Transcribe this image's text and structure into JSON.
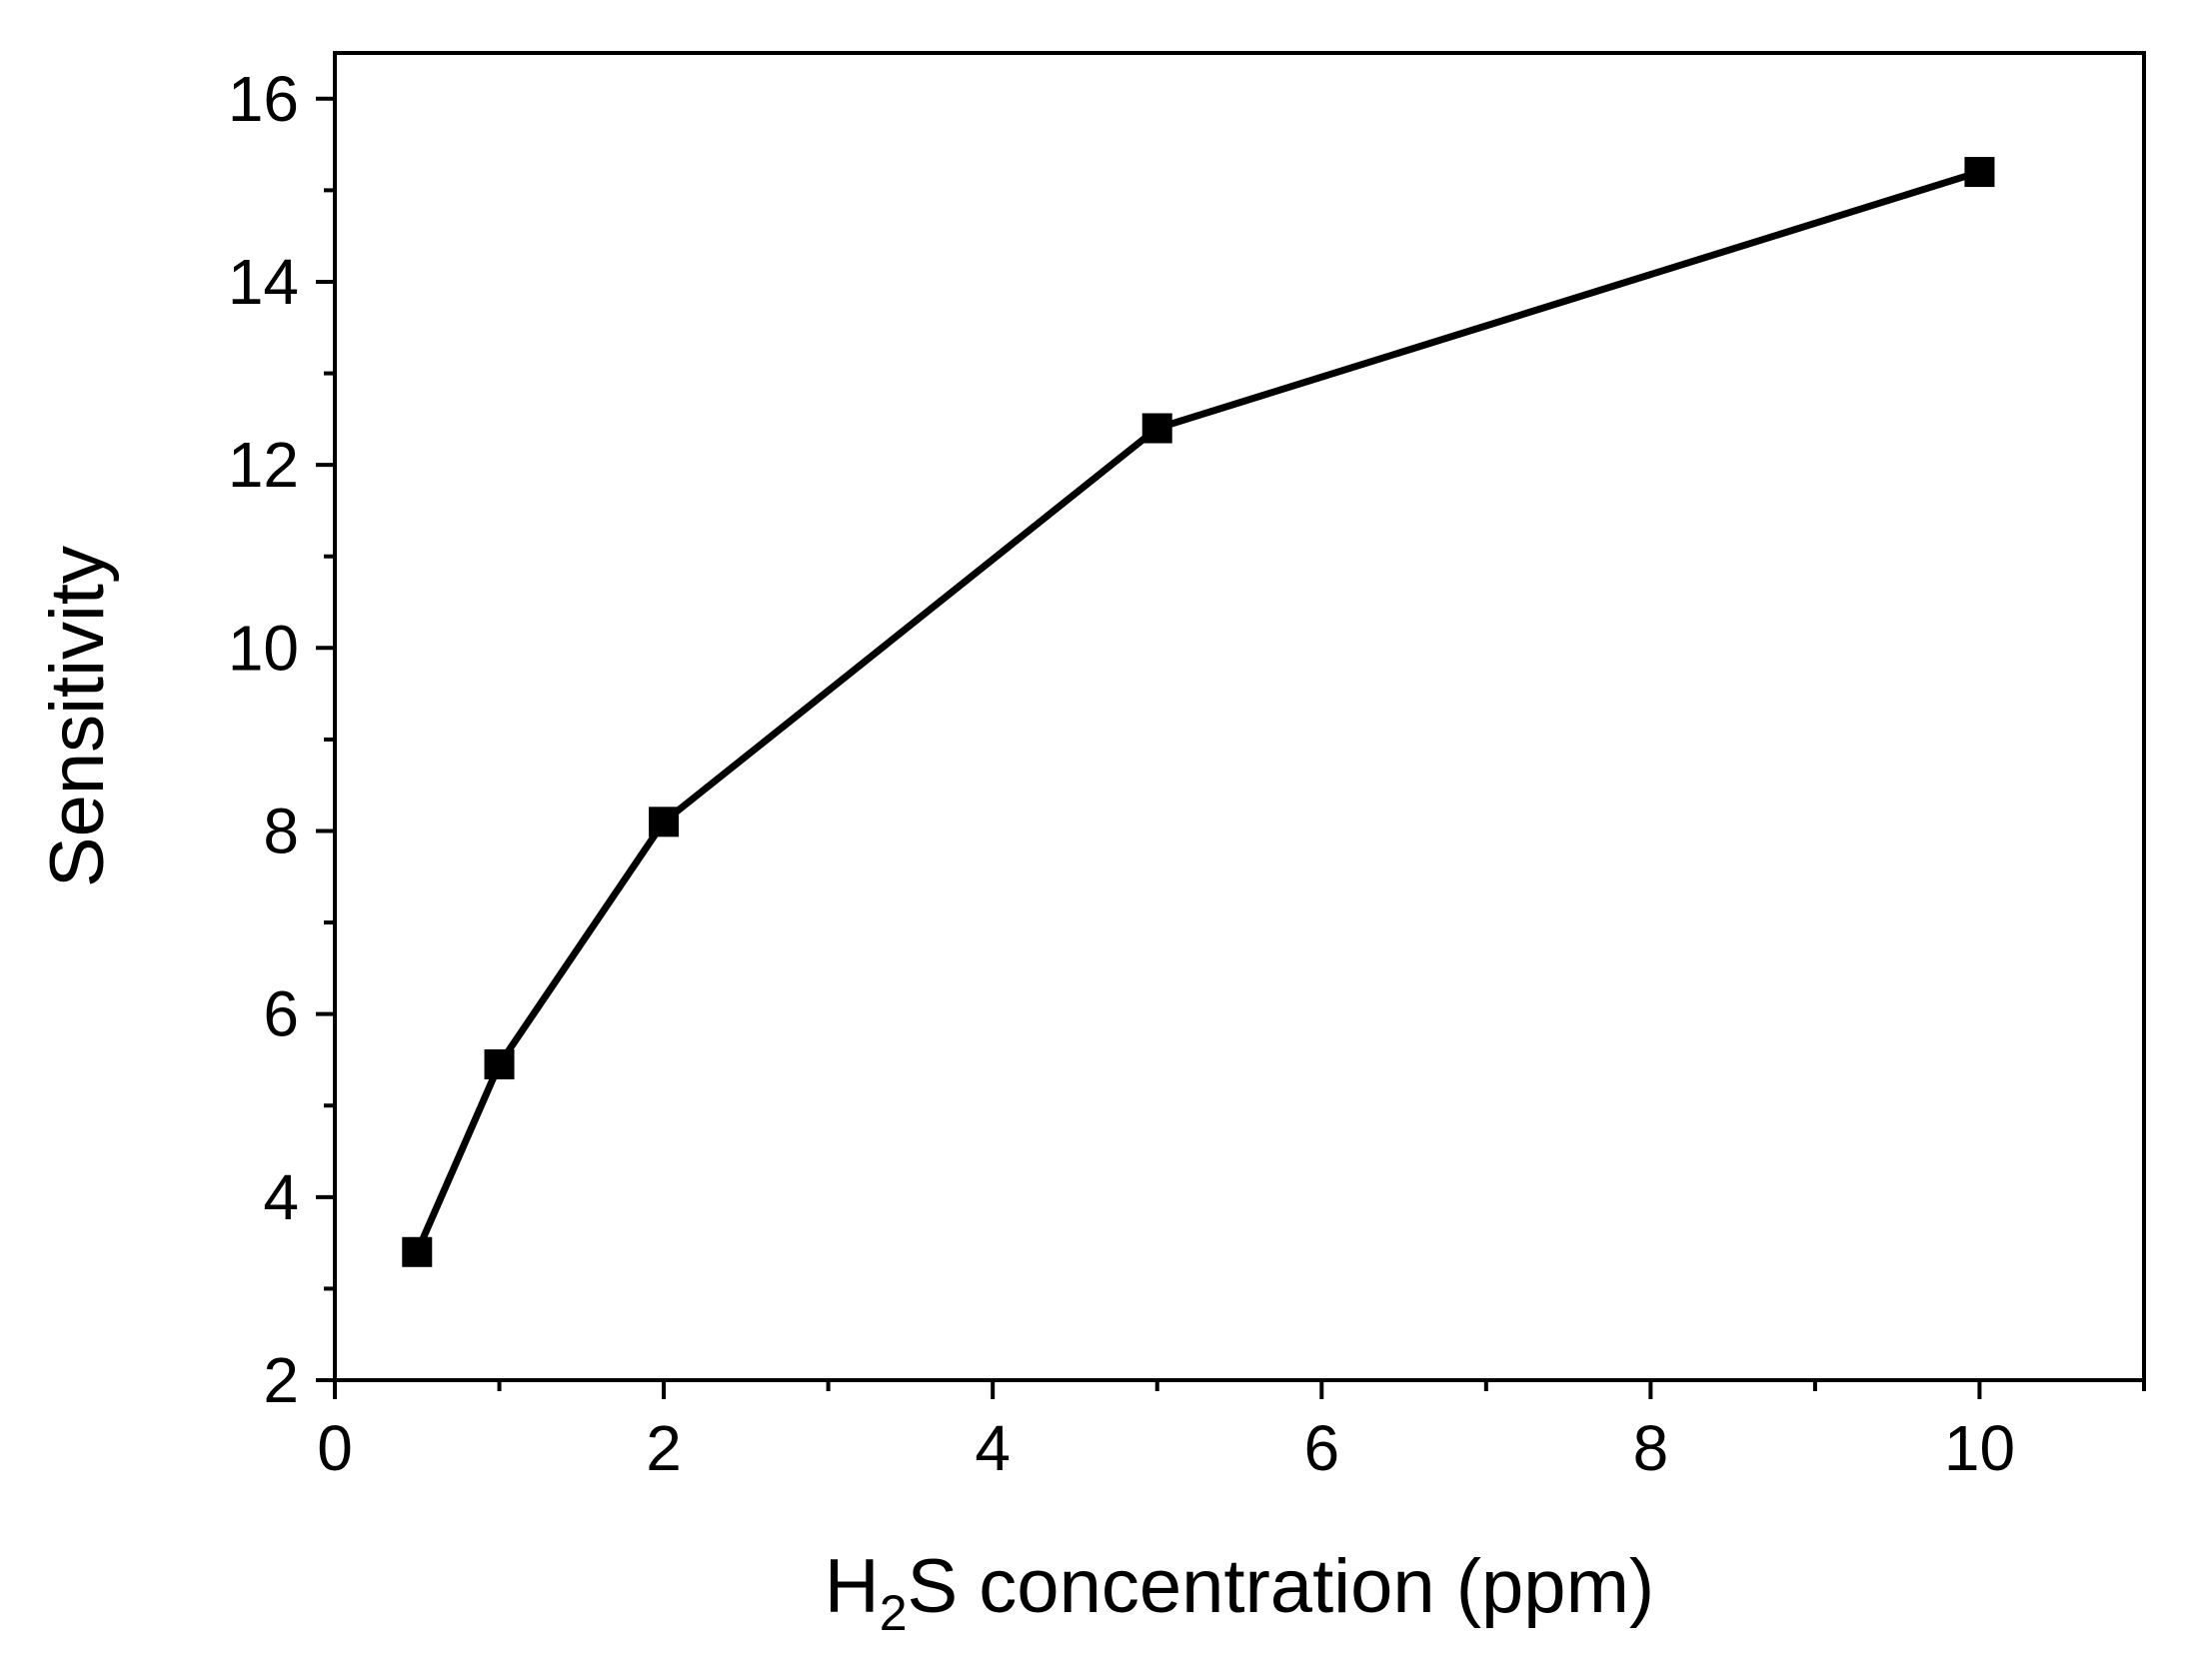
{
  "chart_data": {
    "type": "line",
    "title": "",
    "xlabel": {
      "parts": [
        "H",
        "2",
        "S concentration (ppm)"
      ]
    },
    "ylabel": "Sensitivity",
    "xlim": [
      0,
      11
    ],
    "ylim": [
      2,
      16.5
    ],
    "x_ticks": [
      0,
      2,
      4,
      6,
      8,
      10
    ],
    "x_minor_ticks": [
      1,
      3,
      5,
      7,
      9,
      11
    ],
    "y_ticks": [
      2,
      4,
      6,
      8,
      10,
      12,
      14,
      16
    ],
    "y_minor_ticks": [
      3,
      5,
      7,
      9,
      11,
      13,
      15
    ],
    "grid": false,
    "legend": "none",
    "series": [
      {
        "x": [
          0.5,
          1,
          2,
          5,
          10
        ],
        "y": [
          3.4,
          5.45,
          8.1,
          12.4,
          15.2
        ],
        "marker": "square",
        "color": "#000000"
      }
    ]
  }
}
